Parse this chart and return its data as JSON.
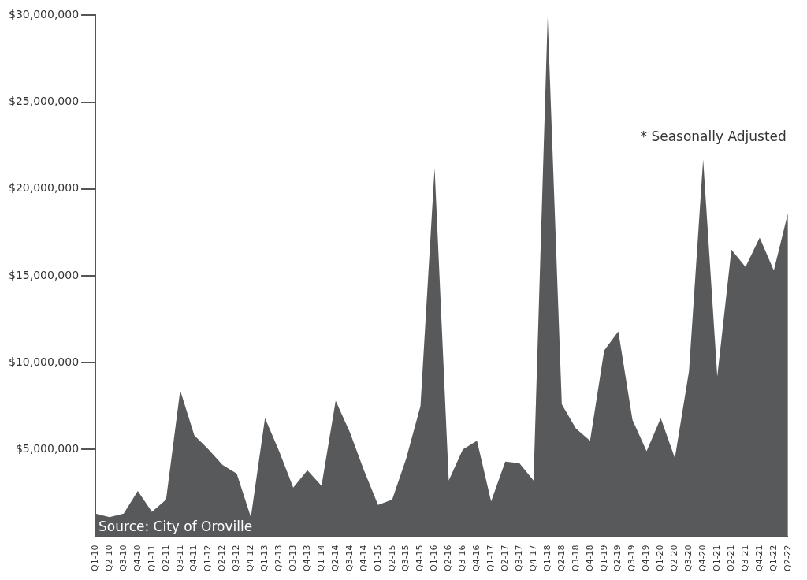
{
  "chart_data": {
    "type": "area",
    "categories": [
      "Q1-10",
      "Q2-10",
      "Q3-10",
      "Q4-10",
      "Q1-11",
      "Q2-11",
      "Q3-11",
      "Q4-11",
      "Q1-12",
      "Q2-12",
      "Q3-12",
      "Q4-12",
      "Q1-13",
      "Q2-13",
      "Q3-13",
      "Q4-13",
      "Q1-14",
      "Q2-14",
      "Q3-14",
      "Q4-14",
      "Q1-15",
      "Q2-15",
      "Q3-15",
      "Q4-15",
      "Q1-16",
      "Q2-16",
      "Q3-16",
      "Q4-16",
      "Q1-17",
      "Q2-17",
      "Q3-17",
      "Q4-17",
      "Q1-18",
      "Q2-18",
      "Q3-18",
      "Q4-18",
      "Q1-19",
      "Q2-19",
      "Q3-19",
      "Q4-19",
      "Q1-20",
      "Q2-20",
      "Q3-20",
      "Q4-20",
      "Q1-21",
      "Q2-21",
      "Q3-21",
      "Q4-21",
      "Q1-22",
      "Q2-22"
    ],
    "series": [
      {
        "color": "#58595b",
        "values": [
          1300000,
          1100000,
          1300000,
          2600000,
          1400000,
          2100000,
          8400000,
          5800000,
          5000000,
          4100000,
          3600000,
          1100000,
          6800000,
          4900000,
          2800000,
          3800000,
          2900000,
          7800000,
          6000000,
          3800000,
          1800000,
          2100000,
          4500000,
          7500000,
          21200000,
          3200000,
          5000000,
          5500000,
          2000000,
          4300000,
          4200000,
          3200000,
          29900000,
          7600000,
          6200000,
          5500000,
          10700000,
          11800000,
          6700000,
          4900000,
          6800000,
          4500000,
          9500000,
          21700000,
          9200000,
          16500000,
          15500000,
          17200000,
          15300000,
          18600000
        ]
      }
    ],
    "ylim": [
      0,
      30000000
    ],
    "yticks": [
      {
        "value": 5000000,
        "label": "$5,000,000"
      },
      {
        "value": 10000000,
        "label": "$10,000,000"
      },
      {
        "value": 15000000,
        "label": "$15,000,000"
      },
      {
        "value": 20000000,
        "label": "$20,000,000"
      },
      {
        "value": 25000000,
        "label": "$25,000,000"
      },
      {
        "value": 30000000,
        "label": "$30,000,000"
      }
    ],
    "annotations": [
      "Source: City of Oroville",
      "* Seasonally Adjusted"
    ]
  }
}
